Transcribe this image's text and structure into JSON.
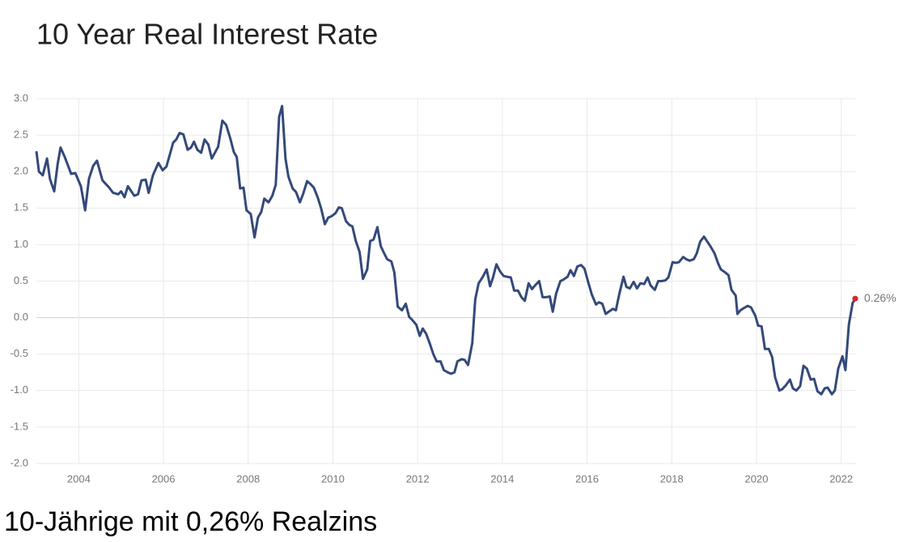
{
  "chart_data": {
    "type": "line",
    "title": "10 Year Real Interest Rate",
    "caption": "10-Jährige mit 0,26% Realzins",
    "color": "#34497a",
    "grid": true,
    "xlim": [
      2003,
      2022.35
    ],
    "xticks": [
      2004,
      2006,
      2008,
      2010,
      2012,
      2014,
      2016,
      2018,
      2020,
      2022
    ],
    "ylim": [
      -2,
      3
    ],
    "yticks": [
      {
        "value": 3,
        "label": "3.0"
      },
      2.5,
      {
        "value": 2,
        "label": "2.0"
      },
      1.5,
      {
        "value": 1,
        "label": "1.0"
      },
      0.5,
      {
        "value": 0,
        "label": "0.0"
      },
      -0.5,
      {
        "value": -1,
        "label": "-1.0"
      },
      -1.5,
      {
        "value": -2,
        "label": "-2.0"
      }
    ],
    "annotation": {
      "x": 2022.33,
      "y": 0.26,
      "label": "0.26%",
      "color": "#d62728"
    },
    "x": [
      2003.0,
      2003.06,
      2003.15,
      2003.25,
      2003.32,
      2003.42,
      2003.5,
      2003.57,
      2003.67,
      2003.82,
      2003.92,
      2004.05,
      2004.15,
      2004.24,
      2004.34,
      2004.43,
      2004.56,
      2004.72,
      2004.81,
      2004.93,
      2005.0,
      2005.08,
      2005.16,
      2005.31,
      2005.4,
      2005.48,
      2005.58,
      2005.65,
      2005.75,
      2005.88,
      2005.98,
      2006.07,
      2006.23,
      2006.3,
      2006.38,
      2006.47,
      2006.57,
      2006.65,
      2006.72,
      2006.8,
      2006.89,
      2006.97,
      2007.06,
      2007.14,
      2007.29,
      2007.39,
      2007.48,
      2007.58,
      2007.66,
      2007.73,
      2007.81,
      2007.89,
      2007.96,
      2008.06,
      2008.15,
      2008.23,
      2008.31,
      2008.38,
      2008.48,
      2008.57,
      2008.65,
      2008.73,
      2008.8,
      2008.88,
      2008.95,
      2009.05,
      2009.13,
      2009.22,
      2009.3,
      2009.39,
      2009.47,
      2009.55,
      2009.64,
      2009.72,
      2009.81,
      2009.89,
      2009.97,
      2010.06,
      2010.14,
      2010.21,
      2010.31,
      2010.39,
      2010.46,
      2010.54,
      2010.63,
      2010.71,
      2010.81,
      2010.88,
      2010.96,
      2011.05,
      2011.13,
      2011.21,
      2011.28,
      2011.38,
      2011.45,
      2011.53,
      2011.63,
      2011.72,
      2011.8,
      2011.87,
      2011.97,
      2012.05,
      2012.12,
      2012.2,
      2012.29,
      2012.37,
      2012.45,
      2012.54,
      2012.62,
      2012.71,
      2012.79,
      2012.87,
      2012.94,
      2013.04,
      2013.11,
      2013.19,
      2013.29,
      2013.36,
      2013.44,
      2013.53,
      2013.63,
      2013.71,
      2013.78,
      2013.86,
      2013.95,
      2014.03,
      2014.11,
      2014.2,
      2014.28,
      2014.37,
      2014.45,
      2014.53,
      2014.62,
      2014.7,
      2014.77,
      2014.87,
      2014.95,
      2015.04,
      2015.12,
      2015.19,
      2015.27,
      2015.37,
      2015.44,
      2015.54,
      2015.61,
      2015.69,
      2015.77,
      2015.86,
      2015.94,
      2016.02,
      2016.11,
      2016.21,
      2016.28,
      2016.36,
      2016.44,
      2016.51,
      2016.61,
      2016.68,
      2016.76,
      2016.86,
      2016.93,
      2017.01,
      2017.1,
      2017.18,
      2017.26,
      2017.35,
      2017.43,
      2017.5,
      2017.6,
      2017.68,
      2017.75,
      2017.85,
      2017.92,
      2018.02,
      2018.1,
      2018.17,
      2018.27,
      2018.34,
      2018.42,
      2018.52,
      2018.59,
      2018.67,
      2018.76,
      2018.84,
      2018.92,
      2019.01,
      2019.09,
      2019.16,
      2019.26,
      2019.34,
      2019.41,
      2019.51,
      2019.55,
      2019.62,
      2019.7,
      2019.79,
      2019.87,
      2019.97,
      2020.04,
      2020.12,
      2020.2,
      2020.29,
      2020.37,
      2020.44,
      2020.54,
      2020.61,
      2020.69,
      2020.79,
      2020.86,
      2020.94,
      2021.03,
      2021.11,
      2021.19,
      2021.28,
      2021.36,
      2021.44,
      2021.53,
      2021.61,
      2021.68,
      2021.78,
      2021.85,
      2021.93,
      2022.03,
      2022.1,
      2022.18,
      2022.27,
      2022.33
    ],
    "values": [
      2.28,
      2.0,
      1.95,
      2.18,
      1.9,
      1.73,
      2.1,
      2.33,
      2.2,
      1.97,
      1.98,
      1.8,
      1.47,
      1.9,
      2.08,
      2.15,
      1.88,
      1.78,
      1.71,
      1.69,
      1.73,
      1.65,
      1.8,
      1.67,
      1.69,
      1.88,
      1.89,
      1.71,
      1.95,
      2.12,
      2.02,
      2.07,
      2.4,
      2.44,
      2.53,
      2.51,
      2.3,
      2.33,
      2.41,
      2.3,
      2.26,
      2.44,
      2.37,
      2.18,
      2.34,
      2.7,
      2.64,
      2.45,
      2.27,
      2.2,
      1.77,
      1.78,
      1.47,
      1.42,
      1.1,
      1.37,
      1.45,
      1.63,
      1.58,
      1.67,
      1.82,
      2.75,
      2.9,
      2.18,
      1.93,
      1.77,
      1.72,
      1.58,
      1.7,
      1.87,
      1.83,
      1.78,
      1.65,
      1.5,
      1.28,
      1.37,
      1.39,
      1.43,
      1.51,
      1.5,
      1.32,
      1.27,
      1.25,
      1.05,
      0.9,
      0.53,
      0.66,
      1.05,
      1.07,
      1.24,
      0.98,
      0.88,
      0.8,
      0.77,
      0.62,
      0.15,
      0.1,
      0.19,
      0.01,
      -0.03,
      -0.1,
      -0.25,
      -0.15,
      -0.22,
      -0.36,
      -0.5,
      -0.6,
      -0.6,
      -0.72,
      -0.75,
      -0.77,
      -0.75,
      -0.6,
      -0.57,
      -0.58,
      -0.65,
      -0.35,
      0.25,
      0.47,
      0.55,
      0.66,
      0.43,
      0.55,
      0.73,
      0.63,
      0.57,
      0.56,
      0.55,
      0.37,
      0.37,
      0.28,
      0.23,
      0.47,
      0.39,
      0.44,
      0.5,
      0.28,
      0.28,
      0.29,
      0.08,
      0.33,
      0.5,
      0.52,
      0.56,
      0.65,
      0.57,
      0.7,
      0.72,
      0.67,
      0.5,
      0.32,
      0.18,
      0.21,
      0.19,
      0.05,
      0.08,
      0.12,
      0.1,
      0.32,
      0.56,
      0.42,
      0.4,
      0.49,
      0.4,
      0.47,
      0.46,
      0.55,
      0.44,
      0.38,
      0.5,
      0.5,
      0.51,
      0.55,
      0.76,
      0.75,
      0.76,
      0.83,
      0.8,
      0.78,
      0.8,
      0.88,
      1.04,
      1.11,
      1.04,
      0.97,
      0.88,
      0.75,
      0.66,
      0.62,
      0.58,
      0.38,
      0.3,
      0.05,
      0.1,
      0.13,
      0.16,
      0.14,
      0.03,
      -0.11,
      -0.12,
      -0.43,
      -0.43,
      -0.54,
      -0.82,
      -1.0,
      -0.98,
      -0.93,
      -0.85,
      -0.97,
      -1.0,
      -0.94,
      -0.66,
      -0.7,
      -0.85,
      -0.84,
      -1.01,
      -1.05,
      -0.97,
      -0.96,
      -1.05,
      -1.0,
      -0.7,
      -0.53,
      -0.72,
      -0.1,
      0.2,
      0.26
    ]
  }
}
